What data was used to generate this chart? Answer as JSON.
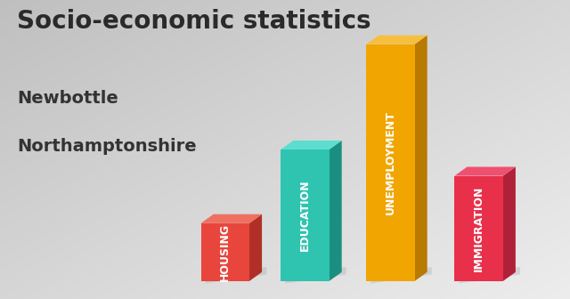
{
  "title": "Socio-economic statistics",
  "subtitle1": "Newbottle",
  "subtitle2": "Northamptonshire",
  "categories": [
    "HOUSING",
    "EDUCATION",
    "UNEMPLOYMENT",
    "IMMIGRATION"
  ],
  "values": [
    0.22,
    0.5,
    0.9,
    0.4
  ],
  "colors": [
    "#e8453c",
    "#2ec4b0",
    "#f0a500",
    "#e8304a"
  ],
  "dark_colors": [
    "#b03028",
    "#1a8f80",
    "#b87a00",
    "#b02038"
  ],
  "top_colors": [
    "#ef7060",
    "#5dddd0",
    "#f5c040",
    "#ef5070"
  ],
  "background_color": "#d0d0d0",
  "title_fontsize": 20,
  "subtitle_fontsize": 14,
  "label_fontsize": 9
}
